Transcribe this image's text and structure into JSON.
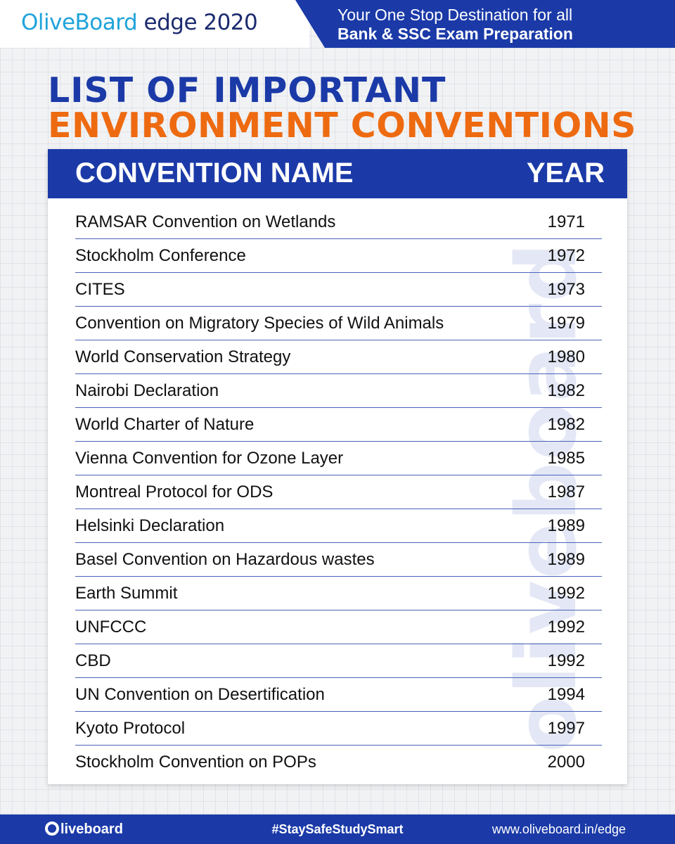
{
  "header": {
    "brand_part1": "OliveBoard",
    "brand_part2": " edge 2020",
    "tagline_line1": "Your One Stop Destination for all",
    "tagline_line2": "Bank & SSC Exam Preparation"
  },
  "title": {
    "line1": "LIST OF IMPORTANT",
    "line2": "ENVIRONMENT CONVENTIONS"
  },
  "table": {
    "headers": {
      "name": "CONVENTION NAME",
      "year": "YEAR"
    },
    "rows": [
      {
        "name": "RAMSAR Convention on Wetlands",
        "year": "1971"
      },
      {
        "name": "Stockholm Conference",
        "year": "1972"
      },
      {
        "name": "CITES",
        "year": "1973"
      },
      {
        "name": "Convention on Migratory Species of Wild Animals",
        "year": "1979"
      },
      {
        "name": "World Conservation Strategy",
        "year": "1980"
      },
      {
        "name": "Nairobi Declaration",
        "year": "1982"
      },
      {
        "name": "World Charter of Nature",
        "year": "1982"
      },
      {
        "name": "Vienna Convention for Ozone Layer",
        "year": "1985"
      },
      {
        "name": "Montreal Protocol for ODS",
        "year": "1987"
      },
      {
        "name": "Helsinki Declaration",
        "year": "1989"
      },
      {
        "name": "Basel Convention on Hazardous wastes",
        "year": "1989"
      },
      {
        "name": "Earth Summit",
        "year": "1992"
      },
      {
        "name": "UNFCCC",
        "year": "1992"
      },
      {
        "name": "CBD",
        "year": "1992"
      },
      {
        "name": "UN Convention on Desertification",
        "year": "1994"
      },
      {
        "name": "Kyoto Protocol",
        "year": "1997"
      },
      {
        "name": "Stockholm Convention on POPs",
        "year": "2000"
      }
    ]
  },
  "watermark": "oliveboard",
  "footer": {
    "logo_text": "liveboard",
    "hashtag": "#StaySafeStudySmart",
    "url": "www.oliveboard.in/edge"
  },
  "colors": {
    "primary_blue": "#1b3aa8",
    "accent_orange": "#ee6a10",
    "brand_cyan": "#1fa3d9"
  }
}
